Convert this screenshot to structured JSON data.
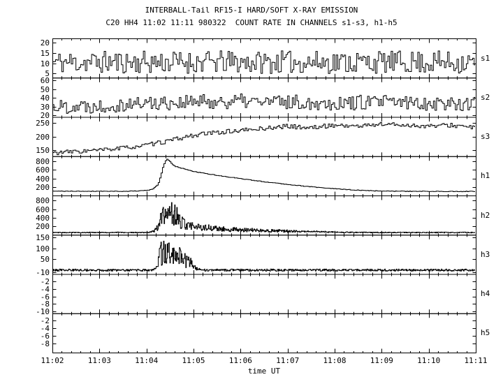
{
  "header": {
    "title1": "INTERBALL-Tail RF15-I HARD/SOFT X-RAY EMISSION",
    "title2": "C20 HH4 11:02 11:11 980322  COUNT RATE IN CHANNELS s1-s3, h1-h5"
  },
  "chart_data": {
    "type": "line",
    "title": "INTERBALL-Tail RF15-I HARD/SOFT X-RAY EMISSION",
    "subtitle": "C20 HH4 11:02 11:11 980322  COUNT RATE IN CHANNELS s1-s3, h1-h5",
    "xaxis": {
      "label": "time UT",
      "range": [
        0,
        9
      ],
      "tick_labels": [
        "11:02",
        "11:03",
        "11:04",
        "11:05",
        "11:06",
        "11:07",
        "11:08",
        "11:09",
        "11:10",
        "11:11"
      ],
      "minor_step": 0.2
    },
    "panels": [
      {
        "id": "s1",
        "label": "s1",
        "ylim": [
          3,
          22
        ],
        "yticks": [
          20,
          15,
          10,
          5
        ],
        "series": {
          "mode": "noise",
          "n": 270,
          "seed": 11,
          "jitter": 5.5,
          "envelope": [
            [
              0,
              10.5
            ],
            [
              9,
              10.5
            ]
          ]
        }
      },
      {
        "id": "s2",
        "label": "s2",
        "ylim": [
          18,
          63
        ],
        "yticks": [
          60,
          50,
          40,
          30,
          20
        ],
        "series": {
          "mode": "noise",
          "n": 270,
          "seed": 22,
          "jitter": 8.5,
          "envelope": [
            [
              0,
              30
            ],
            [
              1,
              31
            ],
            [
              2,
              34
            ],
            [
              3,
              35
            ],
            [
              4,
              36
            ],
            [
              5,
              35
            ],
            [
              6,
              34
            ],
            [
              7,
              35
            ],
            [
              8,
              34
            ],
            [
              9,
              33
            ]
          ]
        }
      },
      {
        "id": "s3",
        "label": "s3",
        "ylim": [
          128,
          272
        ],
        "yticks": [
          250,
          200,
          150
        ],
        "series": {
          "mode": "noise",
          "n": 270,
          "seed": 33,
          "jitter": 8,
          "envelope": [
            [
              0,
              140
            ],
            [
              0.5,
              145
            ],
            [
              1,
              150
            ],
            [
              1.5,
              158
            ],
            [
              2,
              168
            ],
            [
              2.5,
              185
            ],
            [
              3,
              205
            ],
            [
              3.5,
              215
            ],
            [
              4,
              222
            ],
            [
              4.5,
              230
            ],
            [
              5,
              238
            ],
            [
              5.5,
              232
            ],
            [
              6,
              242
            ],
            [
              6.5,
              238
            ],
            [
              7,
              246
            ],
            [
              7.5,
              242
            ],
            [
              8,
              238
            ],
            [
              8.5,
              242
            ],
            [
              9,
              232
            ]
          ]
        }
      },
      {
        "id": "h1",
        "label": "h1",
        "ylim": [
          0,
          920
        ],
        "yticks": [
          800,
          600,
          400,
          200
        ],
        "series": {
          "mode": "noise",
          "n": 300,
          "seed": 41,
          "jitter": 7,
          "envelope": [
            [
              0,
              100
            ],
            [
              1.6,
              100
            ],
            [
              1.9,
              110
            ],
            [
              2.05,
              125
            ],
            [
              2.15,
              160
            ],
            [
              2.25,
              260
            ],
            [
              2.3,
              420
            ],
            [
              2.35,
              640
            ],
            [
              2.4,
              800
            ],
            [
              2.45,
              855
            ],
            [
              2.5,
              800
            ],
            [
              2.55,
              730
            ],
            [
              2.6,
              690
            ],
            [
              2.7,
              655
            ],
            [
              2.8,
              625
            ],
            [
              3.0,
              565
            ],
            [
              3.2,
              525
            ],
            [
              3.4,
              490
            ],
            [
              3.6,
              455
            ],
            [
              3.8,
              425
            ],
            [
              4.0,
              395
            ],
            [
              4.3,
              350
            ],
            [
              4.6,
              310
            ],
            [
              5.0,
              260
            ],
            [
              5.4,
              215
            ],
            [
              5.8,
              175
            ],
            [
              6.1,
              150
            ],
            [
              6.4,
              130
            ],
            [
              6.7,
              115
            ],
            [
              7.0,
              105
            ],
            [
              7.5,
              98
            ],
            [
              8.0,
              97
            ],
            [
              9,
              95
            ]
          ]
        }
      },
      {
        "id": "h2",
        "label": "h2",
        "ylim": [
          0,
          920
        ],
        "yticks": [
          800,
          600,
          400,
          200
        ],
        "series": {
          "mode": "spiky",
          "n": 800,
          "seed": 52,
          "jitter": 10,
          "base": 50,
          "minf": 0.2,
          "envelope": [
            [
              0,
              55
            ],
            [
              2.0,
              55
            ],
            [
              2.1,
              70
            ],
            [
              2.2,
              180
            ],
            [
              2.25,
              320
            ],
            [
              2.3,
              520
            ],
            [
              2.35,
              700
            ],
            [
              2.4,
              770
            ],
            [
              2.45,
              640
            ],
            [
              2.5,
              690
            ],
            [
              2.55,
              800
            ],
            [
              2.6,
              740
            ],
            [
              2.65,
              640
            ],
            [
              2.7,
              540
            ],
            [
              2.8,
              430
            ],
            [
              2.9,
              340
            ],
            [
              3.0,
              300
            ],
            [
              3.1,
              260
            ],
            [
              3.3,
              230
            ],
            [
              3.5,
              200
            ],
            [
              3.8,
              175
            ],
            [
              4.1,
              155
            ],
            [
              4.4,
              140
            ],
            [
              4.7,
              125
            ],
            [
              5.0,
              110
            ],
            [
              5.3,
              95
            ],
            [
              5.6,
              85
            ],
            [
              6.0,
              70
            ],
            [
              6.4,
              60
            ],
            [
              6.8,
              55
            ],
            [
              9,
              55
            ]
          ]
        }
      },
      {
        "id": "h3",
        "label": "h3",
        "ylim": [
          -18,
          162
        ],
        "yticks": [
          150,
          100,
          50,
          -10
        ],
        "series": {
          "mode": "spiky",
          "n": 800,
          "seed": 63,
          "jitter": 5,
          "base": 0,
          "minf": 0.15,
          "envelope": [
            [
              0,
              0
            ],
            [
              2.15,
              0
            ],
            [
              2.2,
              15
            ],
            [
              2.25,
              70
            ],
            [
              2.3,
              125
            ],
            [
              2.35,
              145
            ],
            [
              2.4,
              115
            ],
            [
              2.45,
              135
            ],
            [
              2.5,
              128
            ],
            [
              2.55,
              105
            ],
            [
              2.6,
              120
            ],
            [
              2.65,
              100
            ],
            [
              2.7,
              110
            ],
            [
              2.75,
              92
            ],
            [
              2.8,
              85
            ],
            [
              2.85,
              70
            ],
            [
              2.9,
              62
            ],
            [
              2.95,
              50
            ],
            [
              3.0,
              38
            ],
            [
              3.05,
              22
            ],
            [
              3.1,
              8
            ],
            [
              3.15,
              0
            ],
            [
              9,
              0
            ]
          ]
        }
      },
      {
        "id": "h4",
        "label": "h4",
        "ylim": [
          -10.5,
          0
        ],
        "yticks": [
          -2,
          -4,
          -6,
          -8,
          -10
        ],
        "series": {
          "mode": "flat",
          "n": 2,
          "seed": 1,
          "jitter": 0,
          "envelope": [
            [
              0,
              0
            ],
            [
              9,
              0
            ]
          ]
        }
      },
      {
        "id": "h5",
        "label": "h5",
        "ylim": [
          -10.5,
          0
        ],
        "yticks": [
          -2,
          -4,
          -6,
          -8
        ],
        "series": {
          "mode": "flat",
          "n": 2,
          "seed": 2,
          "jitter": 0,
          "envelope": [
            [
              0,
              0
            ],
            [
              9,
              0
            ]
          ]
        }
      }
    ]
  }
}
